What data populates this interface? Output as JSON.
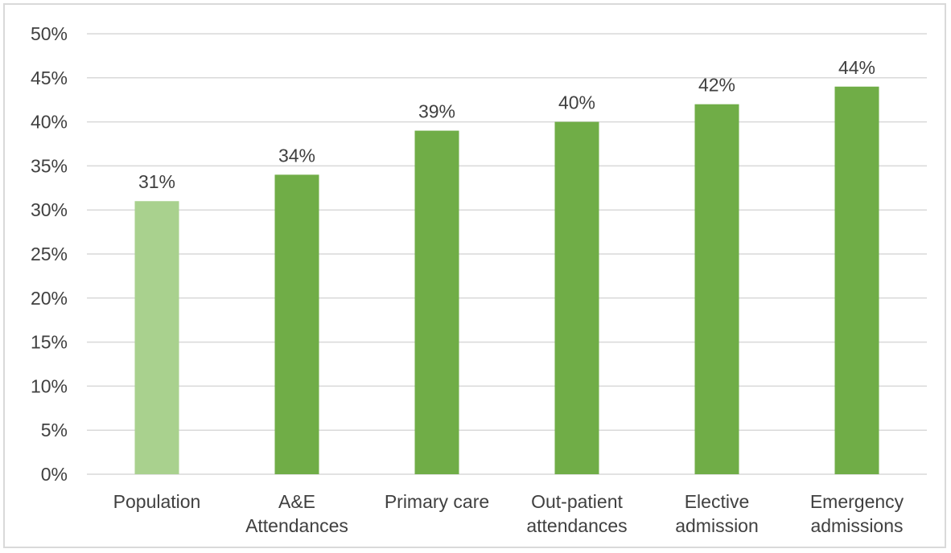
{
  "chart_data": {
    "type": "bar",
    "categories": [
      [
        "Population"
      ],
      [
        "A&E",
        "Attendances"
      ],
      [
        "Primary care"
      ],
      [
        "Out-patient",
        "attendances"
      ],
      [
        "Elective",
        "admission"
      ],
      [
        "Emergency",
        "admissions"
      ]
    ],
    "values": [
      31,
      34,
      39,
      40,
      42,
      44
    ],
    "value_labels": [
      "31%",
      "34%",
      "39%",
      "40%",
      "42%",
      "44%"
    ],
    "bar_colors": [
      "#a9d18e",
      "#70ad47",
      "#70ad47",
      "#70ad47",
      "#70ad47",
      "#70ad47"
    ],
    "ylim": [
      0,
      50
    ],
    "yticks": [
      0,
      5,
      10,
      15,
      20,
      25,
      30,
      35,
      40,
      45,
      50
    ],
    "ytick_labels": [
      "0%",
      "5%",
      "10%",
      "15%",
      "20%",
      "25%",
      "30%",
      "35%",
      "40%",
      "45%",
      "50%"
    ],
    "grid": true,
    "title": "",
    "xlabel": "",
    "ylabel": ""
  }
}
